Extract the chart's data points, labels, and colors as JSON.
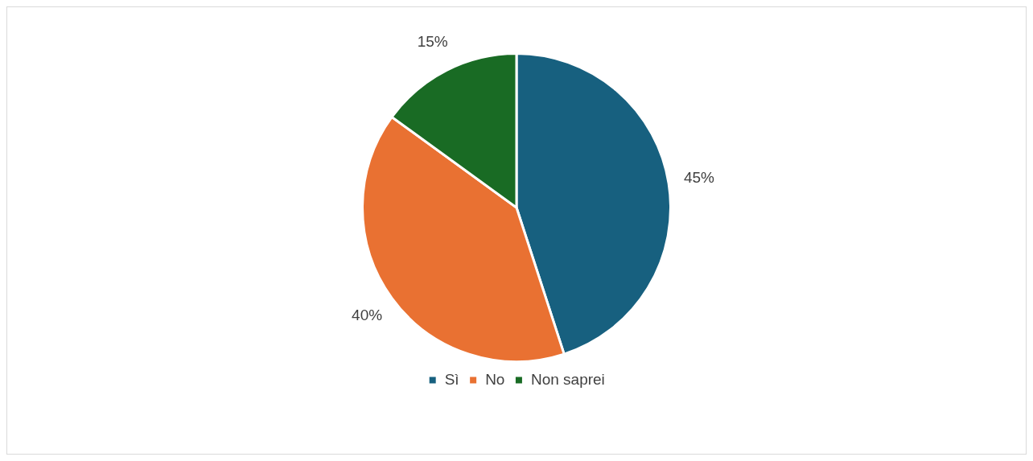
{
  "chart_data": {
    "type": "pie",
    "categories": [
      "Sì",
      "No",
      "Non saprei"
    ],
    "values": [
      45,
      40,
      15
    ],
    "colors": [
      "#17607f",
      "#e97132",
      "#196b24"
    ],
    "value_labels": [
      "45%",
      "40%",
      "15%"
    ],
    "legend": "bottom"
  }
}
